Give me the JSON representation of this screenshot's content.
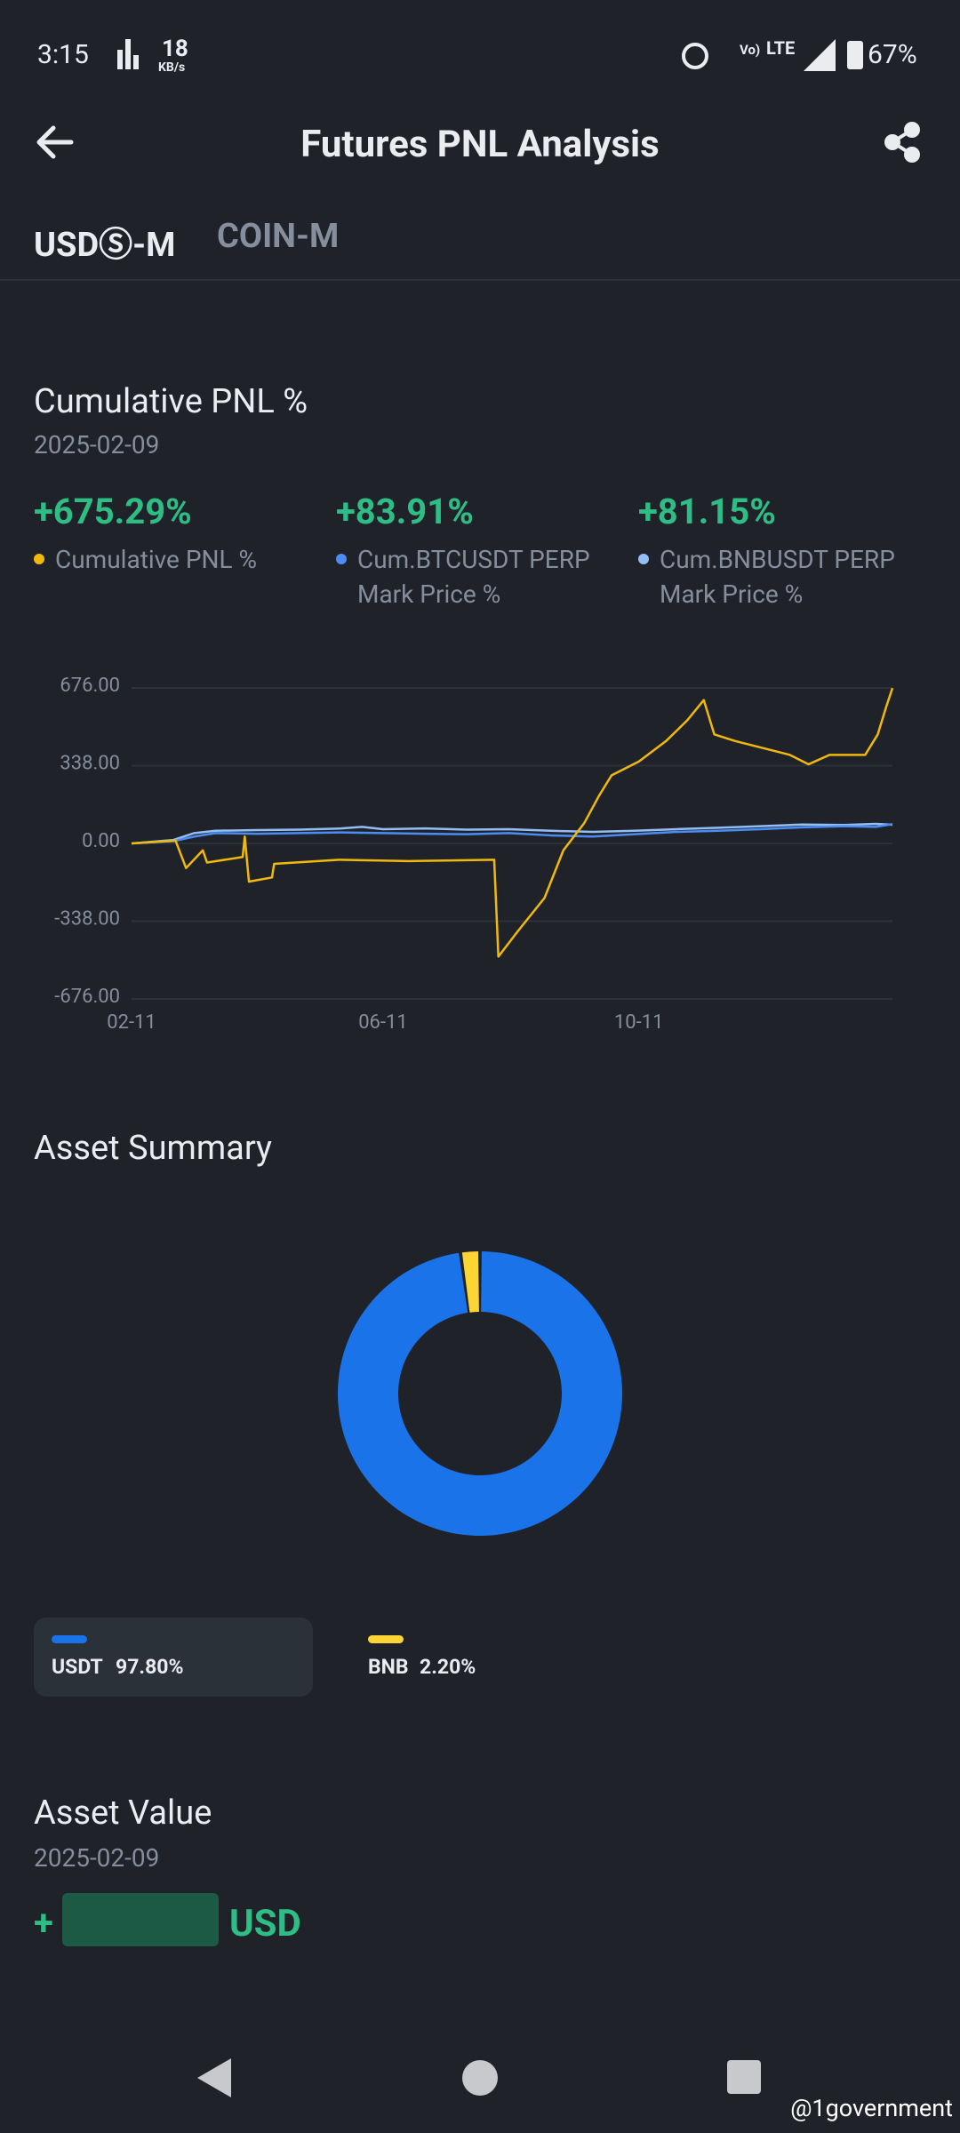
{
  "status_bar": {
    "time": "3:15",
    "speed": "18",
    "speed_unit": "KB/s",
    "network": "LTE",
    "battery": "67%"
  },
  "header": {
    "title": "Futures PNL Analysis"
  },
  "tabs": [
    "USDⓈ-M",
    "COIN-M"
  ],
  "cumulative_pnl": {
    "title": "Cumulative PNL %",
    "date": "2025-02-09",
    "chart": {
      "type": "line",
      "xlim": [
        0,
        363
      ],
      "xticks": [
        {
          "value": 0,
          "label": "02-11"
        },
        {
          "value": 120,
          "label": "06-11"
        },
        {
          "value": 242,
          "label": "10-11"
        }
      ],
      "ylim": [
        -676,
        676
      ],
      "yticks": [
        {
          "value": 676,
          "label": "676.00"
        },
        {
          "value": 338,
          "label": "338.00"
        },
        {
          "value": 0,
          "label": "0.00"
        },
        {
          "value": -338,
          "label": "-338.00"
        },
        {
          "value": -676,
          "label": "-676.00"
        }
      ],
      "grid": true,
      "series": [
        {
          "name": "Cumulative PNL %",
          "headline": "+675.29%",
          "color": "#f0b90b",
          "x": [
            0,
            21,
            26,
            34,
            36,
            53,
            54,
            56,
            67,
            68,
            99,
            132,
            173,
            175,
            184,
            197,
            206,
            216,
            223,
            229,
            242,
            255,
            265,
            273,
            278,
            288,
            301,
            314,
            323,
            333,
            350,
            356,
            360,
            363
          ],
          "values": [
            0,
            12,
            -107,
            -30,
            -83,
            -59,
            30,
            -166,
            -148,
            -89,
            -71,
            -77,
            -71,
            -492,
            -385,
            -237,
            -30,
            89,
            207,
            296,
            356,
            445,
            534,
            623,
            474,
            445,
            415,
            385,
            344,
            385,
            385,
            474,
            593,
            675.29
          ]
        },
        {
          "name": "Cum.BTCUSDT PERP Mark Price %",
          "headline": "+83.91%",
          "color": "#4c8cf5",
          "x": [
            0,
            20,
            30,
            40,
            60,
            80,
            100,
            120,
            140,
            160,
            180,
            200,
            220,
            240,
            260,
            280,
            300,
            320,
            340,
            355,
            363
          ],
          "values": [
            0,
            10,
            30,
            45,
            42,
            45,
            48,
            45,
            42,
            40,
            45,
            35,
            30,
            40,
            50,
            55,
            62,
            70,
            75,
            72,
            83.91
          ]
        },
        {
          "name": "Cum.BNBUSDT PERP Mark Price %",
          "headline": "+81.15%",
          "color": "#93bdf5",
          "x": [
            0,
            20,
            30,
            40,
            60,
            80,
            100,
            110,
            120,
            140,
            160,
            180,
            200,
            220,
            240,
            260,
            280,
            300,
            320,
            340,
            355,
            363
          ],
          "values": [
            0,
            15,
            45,
            55,
            58,
            60,
            65,
            72,
            62,
            65,
            60,
            62,
            55,
            50,
            55,
            62,
            68,
            75,
            82,
            80,
            85,
            81.15
          ]
        }
      ]
    }
  },
  "asset_summary": {
    "title": "Asset Summary",
    "chart": {
      "type": "pie",
      "categories": [
        "USDT",
        "BNB"
      ],
      "values": [
        97.8,
        2.2
      ],
      "value_labels": [
        "97.80%",
        "2.20%"
      ],
      "colors": [
        "#1a73e8",
        "#fcd535"
      ]
    }
  },
  "asset_value": {
    "title": "Asset Value",
    "date": "2025-02-09",
    "sign": "+",
    "unit": "USD"
  },
  "watermark": "@1government"
}
